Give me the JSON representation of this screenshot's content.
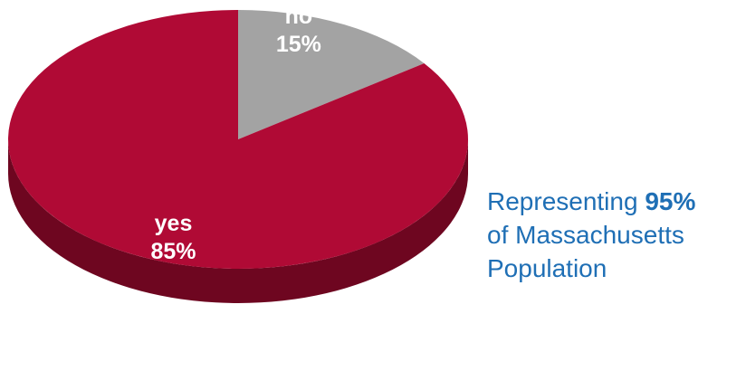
{
  "chart_data": {
    "type": "pie",
    "style": "3d",
    "slices": [
      {
        "label": "no",
        "value": 15,
        "value_label": "15%",
        "color": "#a3a3a3",
        "side_color": "#7d7d7d"
      },
      {
        "label": "yes",
        "value": 85,
        "value_label": "85%",
        "color": "#b00a35",
        "side_color": "#6e0620"
      }
    ]
  },
  "caption": {
    "line1_prefix": "Representing",
    "line1_emphasis": "95%",
    "line2": "of Massachusetts",
    "line3": "Population"
  }
}
